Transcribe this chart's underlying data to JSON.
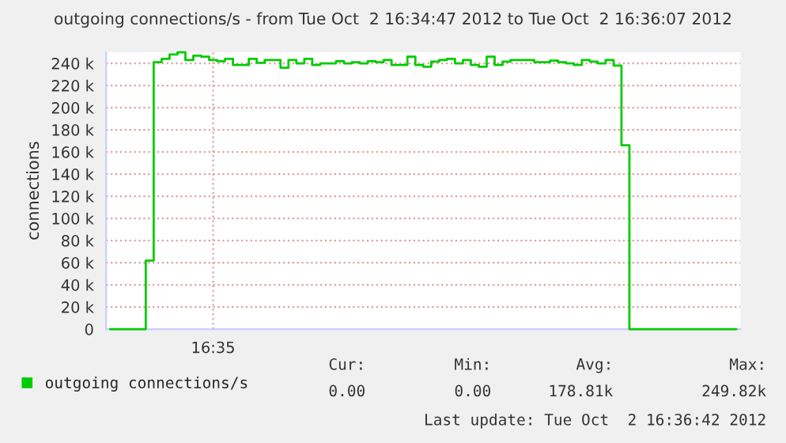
{
  "chart_data": {
    "type": "step",
    "title": "outgoing connections/s - from Tue Oct  2 16:34:47 2012 to Tue Oct  2 16:36:07 2012",
    "ylabel": "connections",
    "categories": [
      null,
      null,
      null,
      null,
      null,
      null,
      null,
      null,
      null,
      null,
      null,
      null,
      null,
      "16:35",
      null,
      null,
      null,
      null,
      null,
      null,
      null,
      null,
      null,
      null,
      null,
      null,
      null,
      null,
      null,
      null,
      null,
      null,
      null,
      null,
      null,
      null,
      null,
      null,
      null,
      null,
      null,
      null,
      null,
      null,
      null,
      null,
      null,
      null,
      null,
      null,
      null,
      null,
      null,
      null,
      null,
      null,
      null,
      null,
      null,
      null,
      null,
      null,
      null,
      null,
      null,
      null,
      null,
      null,
      null,
      null,
      null,
      null,
      null,
      null,
      null,
      null,
      null,
      null,
      null,
      null
    ],
    "series": [
      {
        "name": "outgoing connections/s",
        "color": "#00cc00",
        "values": [
          0,
          0,
          0,
          0,
          0,
          62000,
          241000,
          244000,
          248000,
          250000,
          243000,
          247000,
          246000,
          243000,
          242000,
          244000,
          238500,
          238500,
          244000,
          240500,
          243000,
          243000,
          236000,
          243000,
          240000,
          244000,
          238500,
          240000,
          240000,
          242000,
          240000,
          241000,
          240000,
          242000,
          241000,
          243000,
          238500,
          238500,
          246000,
          238500,
          237000,
          241500,
          243000,
          244000,
          240000,
          243000,
          238500,
          237000,
          246000,
          238500,
          241500,
          243000,
          243000,
          243000,
          241000,
          241000,
          242500,
          241000,
          240000,
          238500,
          243000,
          241500,
          240000,
          243000,
          238000,
          166000,
          0,
          0,
          0,
          0,
          0,
          0,
          0,
          0,
          0,
          0,
          0,
          0,
          0,
          0
        ]
      }
    ],
    "ylim": [
      0,
      250000
    ],
    "yticks": [
      {
        "value": 0,
        "label": "0"
      },
      {
        "value": 20000,
        "label": "20 k"
      },
      {
        "value": 40000,
        "label": "40 k"
      },
      {
        "value": 60000,
        "label": "60 k"
      },
      {
        "value": 80000,
        "label": "80 k"
      },
      {
        "value": 100000,
        "label": "100 k"
      },
      {
        "value": 120000,
        "label": "120 k"
      },
      {
        "value": 140000,
        "label": "140 k"
      },
      {
        "value": 160000,
        "label": "160 k"
      },
      {
        "value": 180000,
        "label": "180 k"
      },
      {
        "value": 200000,
        "label": "200 k"
      },
      {
        "value": 220000,
        "label": "220 k"
      },
      {
        "value": 240000,
        "label": "240 k"
      }
    ],
    "grid": true,
    "legend": "bottom",
    "marker": "none",
    "line_style": "solid",
    "annotations": [
      "Cur:",
      "Min:",
      "Avg:",
      "Max:",
      "0.00",
      "0.00",
      "178.81k",
      "249.82k",
      "Last update: Tue Oct  2 16:36:42 2012"
    ]
  }
}
